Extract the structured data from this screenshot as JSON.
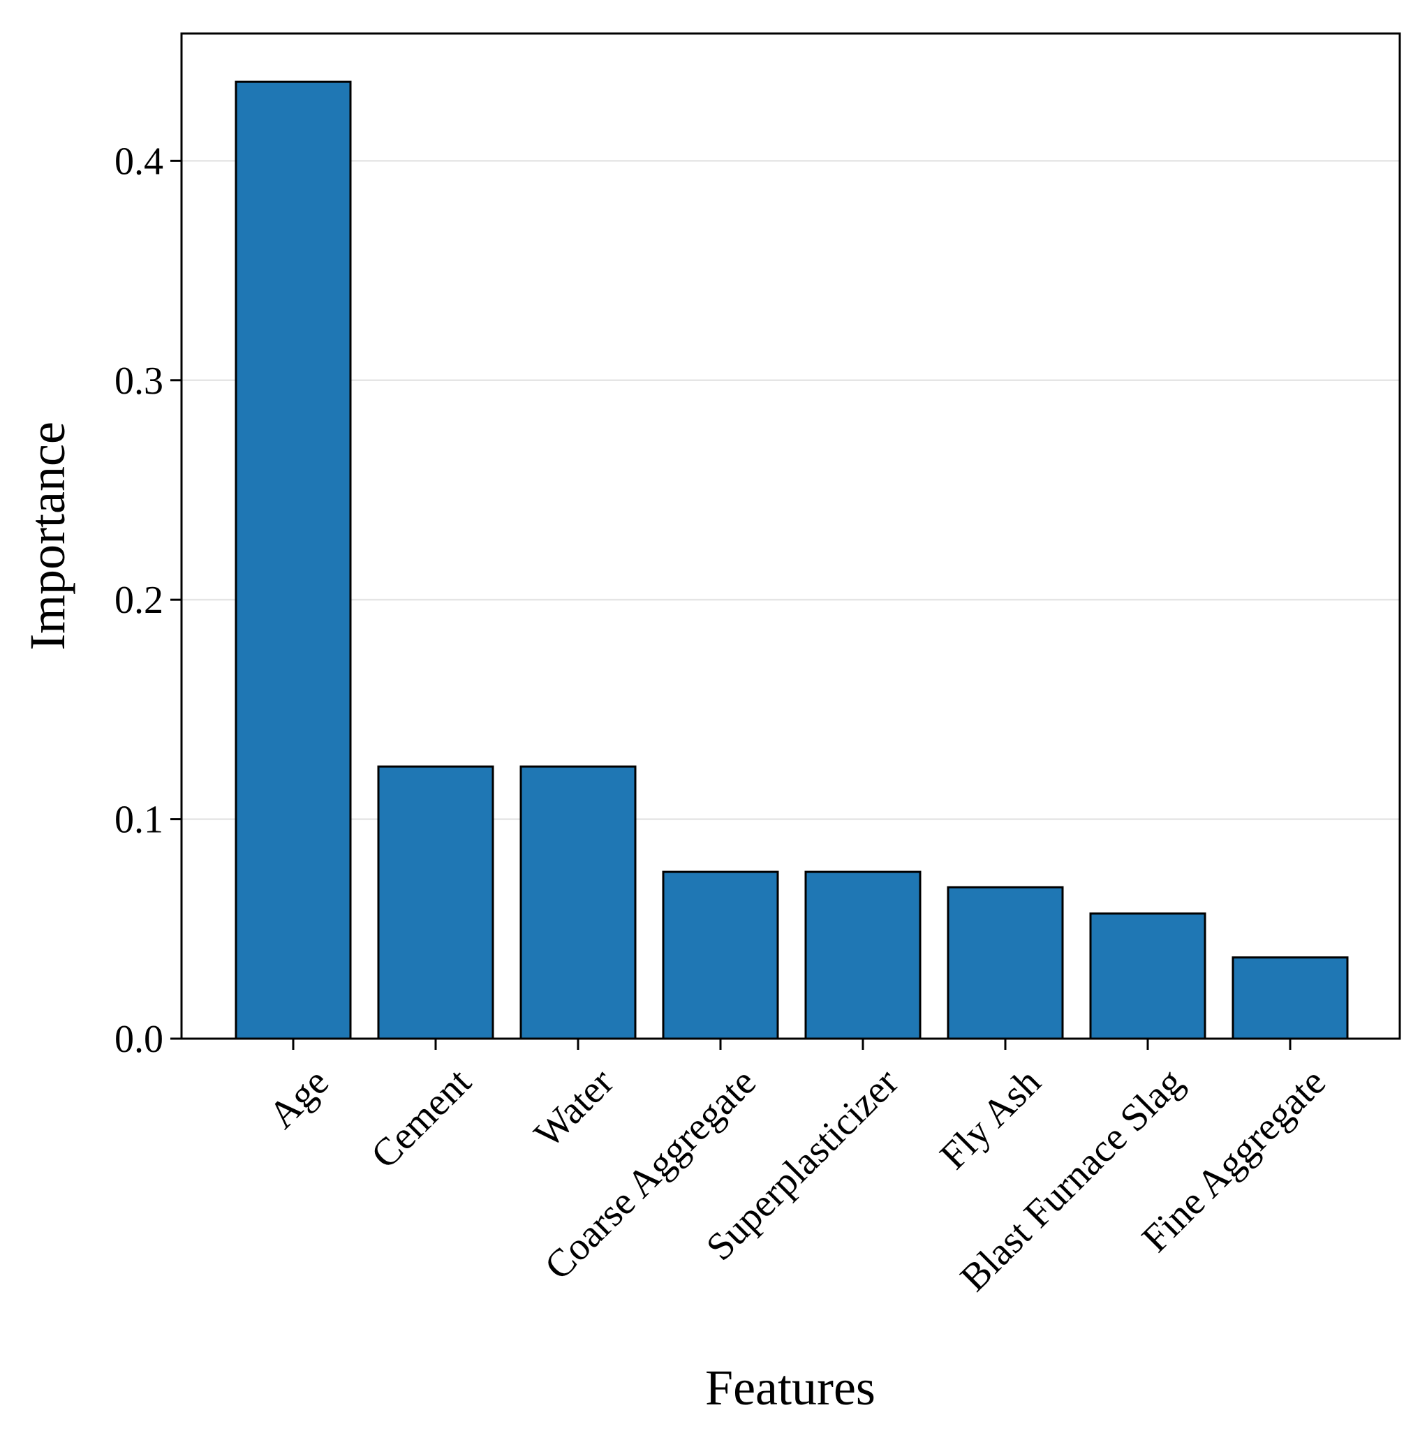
{
  "chart_data": {
    "type": "bar",
    "categories": [
      "Age",
      "Cement",
      "Water",
      "Coarse Aggregate",
      "Superplasticizer",
      "Fly Ash",
      "Blast Furnace Slag",
      "Fine Aggregate"
    ],
    "values": [
      0.436,
      0.124,
      0.124,
      0.076,
      0.076,
      0.069,
      0.057,
      0.037
    ],
    "title": "",
    "xlabel": "Features",
    "ylabel": "Importance",
    "ylim": [
      0,
      0.458
    ],
    "yticks": [
      "0.0",
      "0.1",
      "0.2",
      "0.3",
      "0.4"
    ],
    "grid": "horizontal",
    "bar_color": "#1f77b4",
    "edge_color": "#000000",
    "grid_color": "#e5e5e5"
  }
}
